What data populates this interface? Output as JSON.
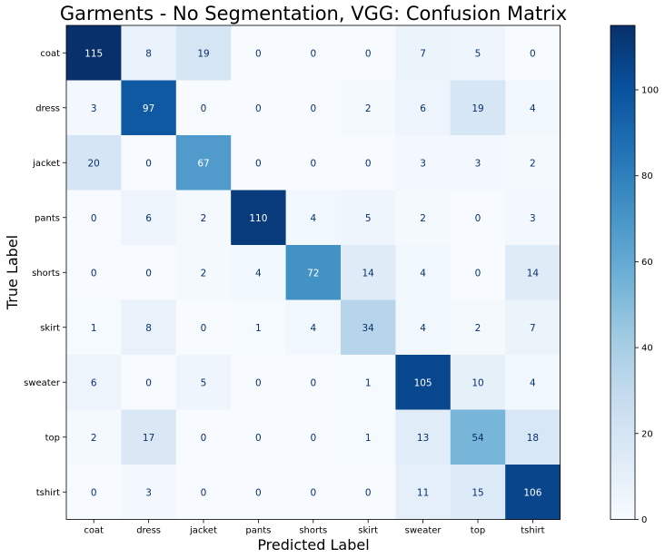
{
  "chart_data": {
    "type": "heatmap",
    "title": "Garments - No Segmentation, VGG: Confusion Matrix",
    "xlabel": "Predicted Label",
    "ylabel": "True Label",
    "x_categories": [
      "coat",
      "dress",
      "jacket",
      "pants",
      "shorts",
      "skirt",
      "sweater",
      "top",
      "tshirt"
    ],
    "y_categories": [
      "coat",
      "dress",
      "jacket",
      "pants",
      "shorts",
      "skirt",
      "sweater",
      "top",
      "tshirt"
    ],
    "values": [
      [
        115,
        8,
        19,
        0,
        0,
        0,
        7,
        5,
        0
      ],
      [
        3,
        97,
        0,
        0,
        0,
        2,
        6,
        19,
        4
      ],
      [
        20,
        0,
        67,
        0,
        0,
        0,
        3,
        3,
        2
      ],
      [
        0,
        6,
        2,
        110,
        4,
        5,
        2,
        0,
        3
      ],
      [
        0,
        0,
        2,
        4,
        72,
        14,
        4,
        0,
        14
      ],
      [
        1,
        8,
        0,
        1,
        4,
        34,
        4,
        2,
        7
      ],
      [
        6,
        0,
        5,
        0,
        0,
        1,
        105,
        10,
        4
      ],
      [
        2,
        17,
        0,
        0,
        0,
        1,
        13,
        54,
        18
      ],
      [
        0,
        3,
        0,
        0,
        0,
        0,
        11,
        15,
        106
      ]
    ],
    "colormap": "Blues",
    "vmin": 0,
    "vmax": 115,
    "colorbar_ticks": [
      0,
      20,
      40,
      60,
      80,
      100
    ],
    "colorbar_colors": [
      "#f7fbff",
      "#deebf7",
      "#c6dbef",
      "#9ecae1",
      "#6baed6",
      "#4292c6",
      "#2171b5",
      "#08519c",
      "#08306b"
    ]
  }
}
